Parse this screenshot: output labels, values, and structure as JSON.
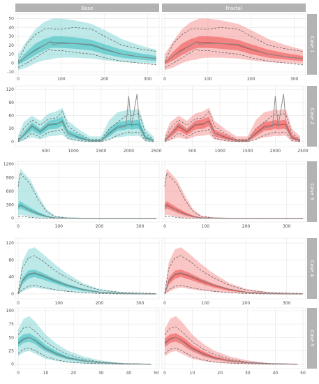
{
  "figure": {
    "columns": [
      "Base",
      "Fractal"
    ],
    "rows": [
      "Case 1",
      "Case 2",
      "Case 3",
      "Case 4",
      "Case 5"
    ],
    "colors": {
      "base_fill": "#5cc8c8",
      "fractal_fill": "#f26d6d",
      "base_line": "#3d9e9e",
      "fractal_line": "#cf4a4a",
      "obs_line": "#8c8c8c",
      "strip_bg": "#b3b3b3",
      "panel_bg": "#ffffff",
      "grid": "#ebebeb",
      "tick_text": "#4d4d4d"
    }
  },
  "chart_data": [
    {
      "type": "area",
      "row": "Case 1",
      "xlim": [
        0,
        320
      ],
      "ylim": [
        -10,
        52
      ],
      "xticks": [
        0,
        100,
        200,
        300
      ],
      "yticks": [
        -10,
        0,
        10,
        20,
        30,
        40,
        50
      ],
      "x": [
        0,
        20,
        40,
        60,
        75,
        80,
        100,
        130,
        170,
        200,
        240,
        280,
        320
      ],
      "median": [
        0,
        8,
        15,
        20,
        24,
        23,
        23,
        22,
        20,
        15,
        10,
        7,
        5
      ],
      "inner": {
        "lo": [
          -2,
          3,
          9,
          14,
          17,
          17,
          17,
          16,
          14,
          10,
          6,
          4,
          2
        ],
        "hi": [
          2,
          13,
          22,
          27,
          29,
          30,
          30,
          29,
          26,
          21,
          15,
          11,
          8
        ]
      },
      "outer": {
        "lo": [
          -8,
          -5,
          0,
          3,
          4,
          5,
          6,
          6,
          5,
          3,
          1,
          0,
          -1
        ],
        "hi": [
          10,
          25,
          38,
          46,
          49,
          50,
          50,
          48,
          44,
          37,
          27,
          20,
          15
        ]
      },
      "dash_hi": [
        2,
        22,
        32,
        38,
        39,
        38,
        38,
        40,
        38,
        30,
        20,
        16,
        13
      ],
      "dash_lo": [
        -5,
        0,
        6,
        12,
        16,
        14,
        14,
        12,
        10,
        6,
        2,
        0,
        -2
      ],
      "obs": [
        0,
        8,
        14,
        20,
        24,
        21,
        22,
        22,
        21,
        16,
        10,
        7,
        5
      ]
    },
    {
      "type": "area",
      "row": "Case 2",
      "xlim": [
        0,
        2500
      ],
      "ylim": [
        -5,
        122
      ],
      "xticks": [
        500,
        1000,
        1500,
        2000,
        2500
      ],
      "yticks": [
        0,
        30,
        60,
        90,
        120
      ],
      "x": [
        0,
        100,
        250,
        400,
        550,
        700,
        800,
        900,
        1100,
        1300,
        1500,
        1650,
        1800,
        1950,
        2000,
        2050,
        2150,
        2200,
        2300,
        2450
      ],
      "median": [
        2,
        15,
        35,
        22,
        38,
        40,
        48,
        20,
        10,
        2,
        2,
        20,
        35,
        38,
        40,
        38,
        40,
        38,
        10,
        2
      ],
      "inner": {
        "lo": [
          0,
          10,
          25,
          15,
          28,
          30,
          36,
          12,
          5,
          0,
          0,
          12,
          25,
          28,
          30,
          28,
          30,
          28,
          5,
          0
        ],
        "hi": [
          5,
          22,
          45,
          30,
          48,
          52,
          58,
          28,
          16,
          5,
          5,
          30,
          45,
          48,
          50,
          48,
          50,
          48,
          16,
          5
        ]
      },
      "outer": {
        "lo": [
          0,
          3,
          10,
          5,
          12,
          14,
          16,
          5,
          1,
          0,
          0,
          5,
          10,
          12,
          14,
          12,
          14,
          12,
          1,
          0
        ],
        "hi": [
          15,
          45,
          60,
          48,
          65,
          70,
          78,
          48,
          28,
          12,
          12,
          50,
          68,
          72,
          75,
          72,
          75,
          72,
          30,
          12
        ]
      },
      "dash_hi": [
        5,
        30,
        50,
        38,
        52,
        55,
        70,
        35,
        18,
        5,
        5,
        30,
        45,
        60,
        62,
        60,
        65,
        60,
        20,
        5
      ],
      "dash_lo": [
        0,
        5,
        20,
        10,
        22,
        25,
        28,
        8,
        2,
        0,
        0,
        5,
        15,
        20,
        22,
        20,
        22,
        20,
        2,
        0
      ],
      "obs": [
        2,
        15,
        38,
        25,
        40,
        42,
        45,
        20,
        8,
        2,
        2,
        18,
        32,
        35,
        105,
        35,
        110,
        30,
        8,
        2
      ]
    },
    {
      "type": "area",
      "row": "Case 3",
      "xlim": [
        0,
        340
      ],
      "ylim": [
        -20,
        1200
      ],
      "xticks": [
        0,
        100,
        200,
        300
      ],
      "yticks": [
        0,
        300,
        600,
        900,
        1200
      ],
      "x": [
        0,
        5,
        15,
        30,
        50,
        70,
        90,
        120,
        160,
        200,
        250,
        300,
        340
      ],
      "median": [
        250,
        300,
        250,
        180,
        100,
        40,
        10,
        3,
        2,
        2,
        2,
        2,
        2
      ],
      "inner": {
        "lo": [
          180,
          220,
          180,
          120,
          60,
          20,
          5,
          2,
          1,
          1,
          1,
          1,
          1
        ],
        "hi": [
          320,
          380,
          320,
          240,
          140,
          60,
          15,
          5,
          3,
          3,
          3,
          3,
          3
        ]
      },
      "outer": {
        "lo": [
          50,
          80,
          60,
          30,
          10,
          3,
          0,
          0,
          0,
          0,
          0,
          0,
          0
        ],
        "hi": [
          800,
          1100,
          1000,
          850,
          500,
          200,
          60,
          20,
          10,
          10,
          10,
          10,
          10
        ]
      },
      "dash_hi": [
        700,
        1000,
        900,
        750,
        400,
        150,
        40,
        10,
        5,
        5,
        5,
        5,
        5
      ],
      "dash_lo": [
        30,
        50,
        40,
        20,
        5,
        1,
        0,
        0,
        0,
        0,
        0,
        0,
        0
      ],
      "obs": [
        250,
        280,
        240,
        170,
        90,
        35,
        8,
        3,
        2,
        2,
        2,
        2,
        2
      ]
    },
    {
      "type": "area",
      "row": "Case 4",
      "xlim": [
        0,
        340
      ],
      "ylim": [
        -5,
        125
      ],
      "xticks": [
        0,
        100,
        200,
        300
      ],
      "yticks": [
        0,
        40,
        80,
        120
      ],
      "x": [
        0,
        10,
        25,
        40,
        60,
        90,
        120,
        160,
        200,
        250,
        300,
        340
      ],
      "median": [
        0,
        30,
        45,
        48,
        42,
        30,
        20,
        10,
        4,
        1,
        0,
        0
      ],
      "inner": {
        "lo": [
          0,
          22,
          36,
          40,
          34,
          24,
          15,
          7,
          3,
          1,
          0,
          0
        ],
        "hi": [
          0,
          38,
          55,
          57,
          50,
          36,
          24,
          12,
          5,
          2,
          1,
          0
        ]
      },
      "outer": {
        "lo": [
          0,
          5,
          12,
          15,
          12,
          8,
          5,
          2,
          1,
          0,
          0,
          0
        ],
        "hi": [
          5,
          75,
          105,
          110,
          95,
          70,
          48,
          25,
          12,
          5,
          2,
          1
        ]
      },
      "dash_hi": [
        2,
        60,
        85,
        90,
        78,
        55,
        38,
        20,
        9,
        4,
        2,
        1
      ],
      "dash_lo": [
        0,
        10,
        18,
        20,
        16,
        10,
        6,
        3,
        1,
        0,
        0,
        0
      ],
      "obs": [
        0,
        32,
        47,
        50,
        44,
        32,
        21,
        11,
        4,
        1,
        0,
        0
      ]
    },
    {
      "type": "area",
      "row": "Case 5",
      "xlim": [
        0,
        50
      ],
      "ylim": [
        -3,
        100
      ],
      "xticks": [
        0,
        10,
        20,
        30,
        40,
        50
      ],
      "yticks": [
        0,
        25,
        50,
        75,
        100
      ],
      "x": [
        0,
        2,
        4,
        6,
        8,
        10,
        14,
        18,
        24,
        30,
        38,
        48
      ],
      "median": [
        40,
        48,
        50,
        45,
        38,
        30,
        20,
        12,
        6,
        3,
        1,
        0
      ],
      "inner": {
        "lo": [
          32,
          40,
          42,
          38,
          30,
          24,
          15,
          9,
          4,
          2,
          0,
          0
        ],
        "hi": [
          48,
          56,
          58,
          52,
          45,
          36,
          24,
          15,
          8,
          4,
          1,
          0
        ]
      },
      "outer": {
        "lo": [
          15,
          22,
          25,
          20,
          15,
          10,
          6,
          3,
          1,
          0,
          0,
          0
        ],
        "hi": [
          65,
          85,
          90,
          80,
          68,
          55,
          38,
          25,
          14,
          7,
          2,
          1
        ]
      },
      "dash_hi": [
        55,
        68,
        70,
        62,
        52,
        42,
        28,
        18,
        9,
        4,
        1,
        0
      ],
      "dash_lo": [
        20,
        28,
        30,
        26,
        20,
        14,
        8,
        4,
        2,
        1,
        0,
        0
      ],
      "obs": [
        38,
        46,
        50,
        44,
        36,
        28,
        18,
        11,
        6,
        3,
        1,
        0
      ]
    }
  ]
}
